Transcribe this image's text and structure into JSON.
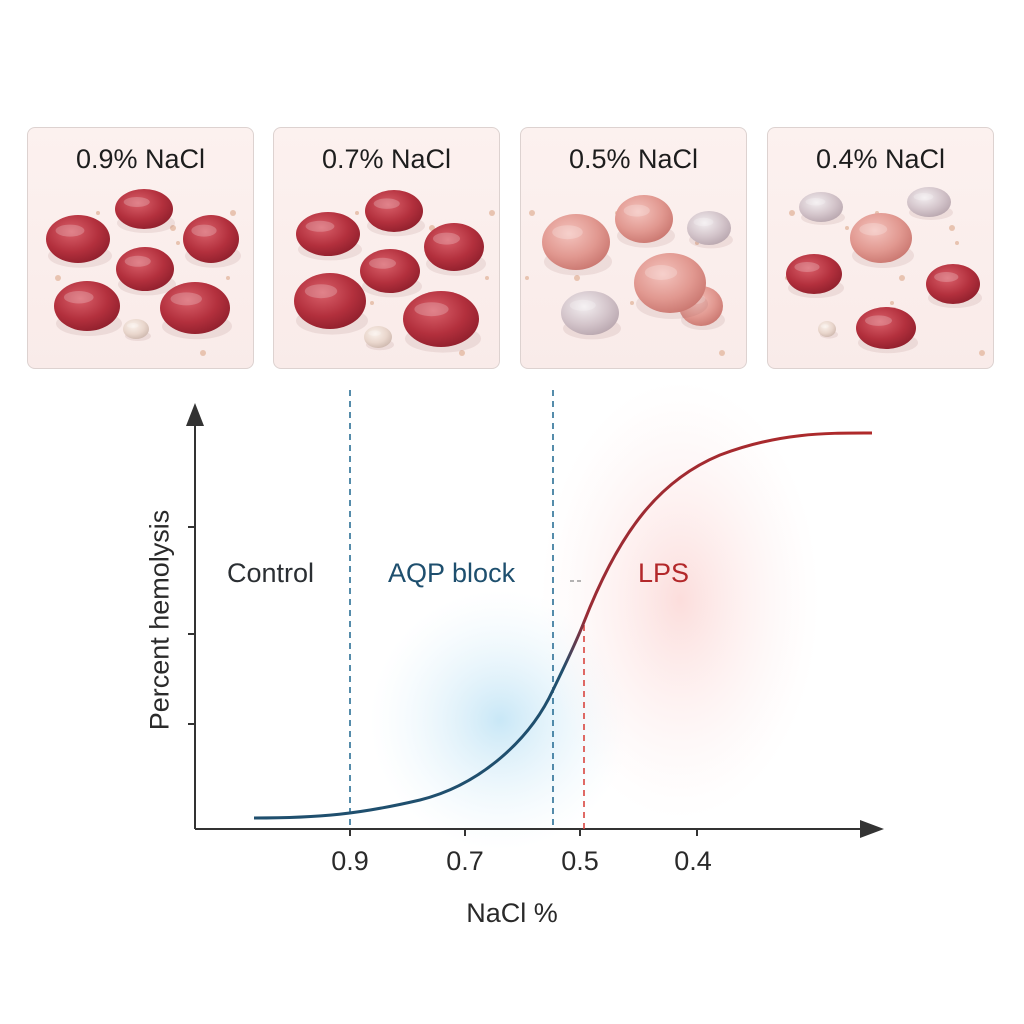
{
  "panels": [
    {
      "title": "0.9% NaCl"
    },
    {
      "title": "0.7% NaCl"
    },
    {
      "title": "0.5% NaCl"
    },
    {
      "title": "0.4% NaCl"
    }
  ],
  "graph": {
    "y_axis_label": "Percent hemolysis",
    "x_axis_label": "NaCl %",
    "x_tick_labels": [
      "0.9",
      "0.7",
      "0.5",
      "0.4"
    ],
    "regions": [
      {
        "label": "Control",
        "color": "#2b2f33"
      },
      {
        "label": "AQP block",
        "color": "#1e4f6e"
      },
      {
        "label": "LPS",
        "color": "#b3282a"
      }
    ],
    "colors": {
      "curve_low": "#1f4f6e",
      "curve_high": "#b02a2a",
      "dash_blue": "#2b6f96",
      "dash_red": "#d9453f"
    }
  }
}
